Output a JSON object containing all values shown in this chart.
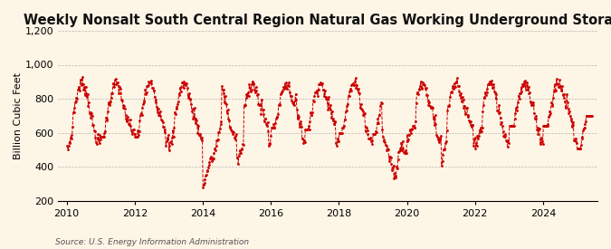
{
  "title": "Weekly Nonsalt South Central Region Natural Gas Working Underground Storage",
  "ylabel": "Billion Cubic Feet",
  "source": "Source: U.S. Energy Information Administration",
  "background_color": "#fdf5e6",
  "line_color": "#cc0000",
  "ylim": [
    200,
    1200
  ],
  "yticks": [
    200,
    400,
    600,
    800,
    1000,
    1200
  ],
  "ytick_labels": [
    "200",
    "400",
    "600",
    "800",
    "1,000",
    "1,200"
  ],
  "xlim_start": 2009.75,
  "xlim_end": 2025.6,
  "xticks": [
    2010,
    2012,
    2014,
    2016,
    2018,
    2020,
    2022,
    2024
  ],
  "title_fontsize": 10.5,
  "label_fontsize": 8,
  "tick_fontsize": 8
}
